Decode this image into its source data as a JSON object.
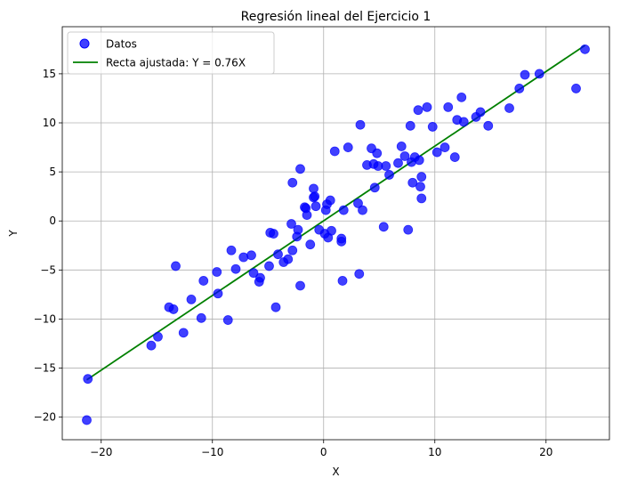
{
  "chart_data": {
    "type": "scatter",
    "title": "Regresión lineal del Ejercicio 1",
    "xlabel": "X",
    "ylabel": "Y",
    "xlim": [
      -23.5,
      25.7
    ],
    "ylim": [
      -22.3,
      19.8
    ],
    "xticks": [
      -20,
      -10,
      0,
      10,
      20
    ],
    "yticks": [
      -20,
      -15,
      -10,
      -5,
      0,
      5,
      10,
      15
    ],
    "xtick_labels": [
      "−20",
      "−10",
      "0",
      "10",
      "20"
    ],
    "ytick_labels": [
      "−20",
      "−15",
      "−10",
      "−5",
      "0",
      "5",
      "10",
      "15"
    ],
    "grid": true,
    "legend_position": "top-left",
    "colors": {
      "points": "#0000ff",
      "line": "#008000",
      "grid": "#b0b0b0"
    },
    "series": [
      {
        "name": "Datos",
        "kind": "scatter",
        "points": [
          [
            -21.3,
            -20.3
          ],
          [
            -21.2,
            -16.1
          ],
          [
            -15.5,
            -12.7
          ],
          [
            -14.9,
            -11.8
          ],
          [
            -13.9,
            -8.8
          ],
          [
            -13.5,
            -9.0
          ],
          [
            -13.3,
            -4.6
          ],
          [
            -12.6,
            -11.4
          ],
          [
            -11.9,
            -8.0
          ],
          [
            -11.0,
            -9.9
          ],
          [
            -10.8,
            -6.1
          ],
          [
            -9.6,
            -5.2
          ],
          [
            -9.5,
            -7.4
          ],
          [
            -8.6,
            -10.1
          ],
          [
            -8.3,
            -3.0
          ],
          [
            -7.9,
            -4.9
          ],
          [
            -7.2,
            -3.7
          ],
          [
            -6.5,
            -3.5
          ],
          [
            -6.3,
            -5.3
          ],
          [
            -5.8,
            -6.2
          ],
          [
            -5.7,
            -5.8
          ],
          [
            -4.9,
            -4.6
          ],
          [
            -4.8,
            -1.2
          ],
          [
            -4.5,
            -1.3
          ],
          [
            -4.3,
            -8.8
          ],
          [
            -4.1,
            -3.4
          ],
          [
            -3.6,
            -4.2
          ],
          [
            -3.2,
            -3.9
          ],
          [
            -2.9,
            -0.3
          ],
          [
            -2.8,
            3.9
          ],
          [
            -2.8,
            -3.0
          ],
          [
            -2.4,
            -1.6
          ],
          [
            -2.3,
            -0.9
          ],
          [
            -2.1,
            -6.6
          ],
          [
            -2.1,
            5.3
          ],
          [
            -1.7,
            1.4
          ],
          [
            -1.6,
            1.3
          ],
          [
            -1.5,
            0.6
          ],
          [
            -1.2,
            -2.4
          ],
          [
            -0.9,
            2.4
          ],
          [
            -0.9,
            3.3
          ],
          [
            -0.8,
            2.5
          ],
          [
            -0.7,
            1.5
          ],
          [
            -0.4,
            -0.9
          ],
          [
            0.1,
            -1.3
          ],
          [
            0.2,
            1.1
          ],
          [
            0.3,
            1.7
          ],
          [
            0.4,
            -1.7
          ],
          [
            0.6,
            2.1
          ],
          [
            0.7,
            -1.0
          ],
          [
            1.0,
            7.1
          ],
          [
            1.6,
            -1.8
          ],
          [
            1.6,
            -2.1
          ],
          [
            1.7,
            -6.1
          ],
          [
            1.8,
            1.1
          ],
          [
            2.2,
            7.5
          ],
          [
            3.1,
            1.8
          ],
          [
            3.2,
            -5.4
          ],
          [
            3.3,
            9.8
          ],
          [
            3.5,
            1.1
          ],
          [
            3.9,
            5.7
          ],
          [
            4.3,
            7.4
          ],
          [
            4.5,
            5.8
          ],
          [
            4.6,
            3.4
          ],
          [
            4.8,
            6.9
          ],
          [
            4.9,
            5.6
          ],
          [
            5.4,
            -0.6
          ],
          [
            5.6,
            5.6
          ],
          [
            5.9,
            4.7
          ],
          [
            6.7,
            5.9
          ],
          [
            7.0,
            7.6
          ],
          [
            7.3,
            6.6
          ],
          [
            7.6,
            -0.9
          ],
          [
            7.8,
            9.7
          ],
          [
            7.9,
            6.0
          ],
          [
            8.0,
            3.9
          ],
          [
            8.2,
            6.5
          ],
          [
            8.5,
            11.3
          ],
          [
            8.6,
            6.2
          ],
          [
            8.7,
            3.5
          ],
          [
            8.8,
            4.5
          ],
          [
            8.8,
            2.3
          ],
          [
            9.3,
            11.6
          ],
          [
            9.8,
            9.6
          ],
          [
            10.2,
            7.0
          ],
          [
            10.9,
            7.5
          ],
          [
            11.2,
            11.6
          ],
          [
            11.8,
            6.5
          ],
          [
            12.0,
            10.3
          ],
          [
            12.4,
            12.6
          ],
          [
            12.6,
            10.1
          ],
          [
            13.7,
            10.6
          ],
          [
            14.1,
            11.1
          ],
          [
            14.8,
            9.7
          ],
          [
            16.7,
            11.5
          ],
          [
            17.6,
            13.5
          ],
          [
            18.1,
            14.9
          ],
          [
            19.4,
            15.0
          ],
          [
            22.7,
            13.5
          ],
          [
            23.5,
            17.5
          ]
        ]
      },
      {
        "name": "Recta ajustada: Y = 0.76X",
        "kind": "line",
        "x": [
          -21.3,
          23.5
        ],
        "y": [
          -16.2,
          17.9
        ]
      }
    ]
  }
}
